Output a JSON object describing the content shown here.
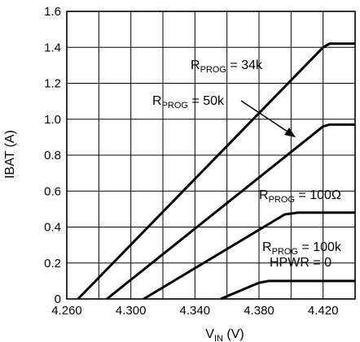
{
  "chart_data": {
    "type": "line",
    "xlabel": {
      "main": "V",
      "sub": "IN",
      "unit": " (V)"
    },
    "ylabel": "IBAT (A)",
    "xlim": [
      4.26,
      4.44
    ],
    "ylim": [
      0,
      1.6
    ],
    "x_ticks": [
      "4.260",
      "4.300",
      "4.340",
      "4.380",
      "4.420"
    ],
    "y_ticks": [
      "0",
      "0.2",
      "0.4",
      "0.6",
      "0.8",
      "1.0",
      "1.2",
      "1.4",
      "1.6"
    ],
    "grid": true,
    "series": [
      {
        "name": "RPROG = 34k",
        "x": [
          4.267,
          4.42,
          4.424,
          4.44
        ],
        "y": [
          0,
          1.4,
          1.42,
          1.42
        ]
      },
      {
        "name": "RPROG = 50k",
        "x": [
          4.285,
          4.42,
          4.424,
          4.44
        ],
        "y": [
          0,
          0.96,
          0.97,
          0.97
        ]
      },
      {
        "name": "RPROG = 100Ω",
        "x": [
          4.308,
          4.396,
          4.404,
          4.44
        ],
        "y": [
          0,
          0.47,
          0.48,
          0.48
        ]
      },
      {
        "name": "RPROG = 100k HPWR = 0",
        "x": [
          4.356,
          4.38,
          4.386,
          4.44
        ],
        "y": [
          0,
          0.09,
          0.1,
          0.1
        ]
      }
    ],
    "annotations": [
      {
        "main": "R",
        "sub": "PROG",
        "text": " = 34k"
      },
      {
        "main": "R",
        "sub": "PROG",
        "text": " = 50k"
      },
      {
        "main": "R",
        "sub": "PROG",
        "text": " = 100Ω"
      },
      {
        "main": "R",
        "sub": "PROG",
        "text": " = 100k",
        "line2": "HPWR = 0"
      }
    ]
  }
}
